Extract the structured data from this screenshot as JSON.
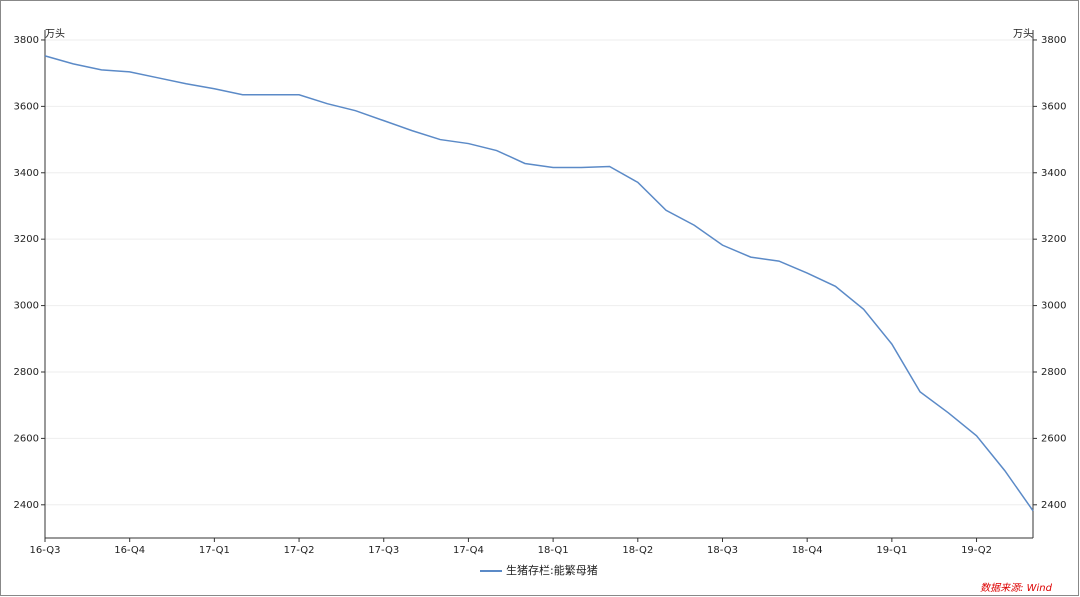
{
  "chart_data": {
    "type": "line",
    "y_unit": "万头",
    "y2_unit": "万头",
    "categories": [
      "16-Q3",
      null,
      null,
      "16-Q4",
      null,
      null,
      "17-Q1",
      null,
      null,
      "17-Q2",
      null,
      null,
      "17-Q3",
      null,
      null,
      "17-Q4",
      null,
      null,
      "18-Q1",
      null,
      null,
      "18-Q2",
      null,
      null,
      "18-Q3",
      null,
      null,
      "18-Q4",
      null,
      null,
      "19-Q1",
      null,
      null,
      "19-Q2",
      null,
      null
    ],
    "series": [
      {
        "name": "生猪存栏:能繁母猪",
        "color": "#5b8ac7",
        "values": [
          3752,
          3728,
          3710,
          3704,
          3686,
          3668,
          3653,
          3635,
          3635,
          3635,
          3608,
          3587,
          3557,
          3527,
          3500,
          3488,
          3467,
          3428,
          3416,
          3416,
          3419,
          3371,
          3287,
          3242,
          3182,
          3146,
          3134,
          3098,
          3058,
          2989,
          2884,
          2740,
          2677,
          2608,
          2503,
          2382
        ]
      }
    ],
    "ylim": [
      2300,
      3830
    ],
    "yticks": [
      2400,
      2600,
      2800,
      3000,
      3200,
      3400,
      3600,
      3800
    ],
    "y2lim": [
      2300,
      3830
    ],
    "y2ticks": [
      2400,
      2600,
      2800,
      3000,
      3200,
      3400,
      3600,
      3800
    ],
    "grid": true,
    "legend": "bottom",
    "source": "数据来源: Wind"
  }
}
